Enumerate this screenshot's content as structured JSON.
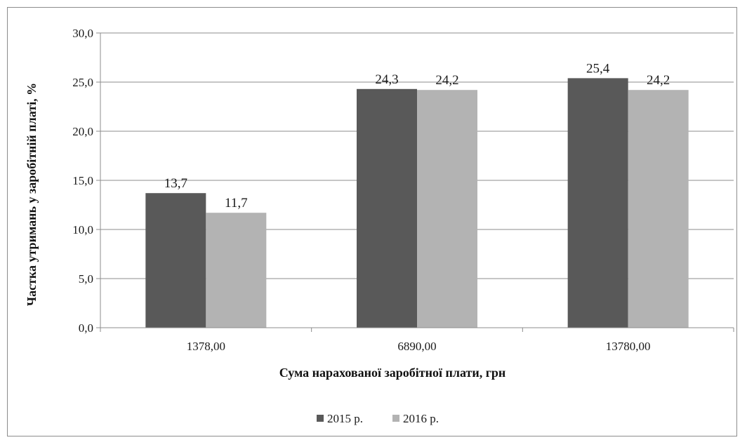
{
  "chart_data": {
    "type": "bar",
    "title": "",
    "xlabel": "Сума нарахованої заробітної плати, грн",
    "ylabel": "Частка утримань у заробітній платі, %",
    "categories": [
      "1378,00",
      "6890,00",
      "13780,00"
    ],
    "series": [
      {
        "name": "2015 р.",
        "color": "#595959",
        "values": [
          13.7,
          24.3,
          25.4
        ],
        "labels": [
          "13,7",
          "24,3",
          "25,4"
        ]
      },
      {
        "name": "2016 р.",
        "color": "#b3b3b3",
        "values": [
          11.7,
          24.2,
          24.2
        ],
        "labels": [
          "11,7",
          "24,2",
          "24,2"
        ]
      }
    ],
    "ylim": [
      0,
      30
    ],
    "yticks": [
      0,
      5,
      10,
      15,
      20,
      25,
      30
    ],
    "ytick_labels": [
      "0,0",
      "5,0",
      "10,0",
      "15,0",
      "20,0",
      "25,0",
      "30,0"
    ],
    "grid": true,
    "legend_position": "bottom-center",
    "colors": {
      "gridline": "#8c8c8c",
      "axis": "#8c8c8c",
      "border": "#8c8c8c"
    }
  }
}
